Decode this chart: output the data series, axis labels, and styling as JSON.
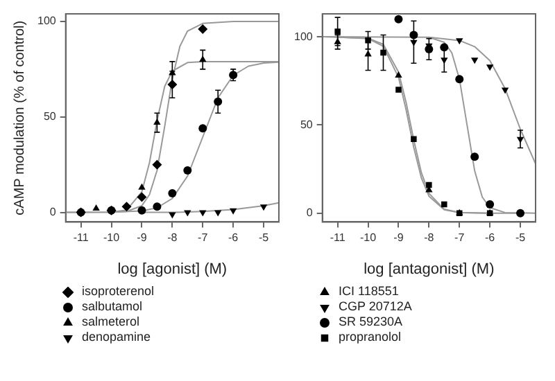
{
  "chart_data": [
    {
      "type": "scatter",
      "xlabel": "log [agonist] (M)",
      "ylabel": "cAMP modulation (% of control)",
      "xlim": [
        -11.5,
        -4.5
      ],
      "xticks": [
        -11,
        -10,
        -9,
        -8,
        -7,
        -6,
        -5
      ],
      "ylim": [
        -5,
        104
      ],
      "yticks": [
        0,
        50,
        100
      ],
      "grid": false,
      "legend": "bottom",
      "series": [
        {
          "type": "line",
          "color": "#999999",
          "marker": "none",
          "x": [
            -11.5,
            -10,
            -9.5,
            -9,
            -8.75,
            -8.5,
            -8.25,
            -8,
            -7.75,
            -7.5,
            -7,
            -6,
            -4.5
          ],
          "values": [
            0,
            0.1,
            0.5,
            3.5,
            9.3,
            22,
            45,
            70,
            87,
            95,
            99,
            100,
            100
          ]
        },
        {
          "type": "line",
          "color": "#999999",
          "marker": "none",
          "x": [
            -11.5,
            -10,
            -9.5,
            -9,
            -8.75,
            -8.5,
            -8.25,
            -8,
            -7.5,
            -7,
            -4.5
          ],
          "values": [
            0,
            0.1,
            1.2,
            10.8,
            26,
            48,
            66,
            74,
            78.5,
            79,
            79
          ]
        },
        {
          "type": "line",
          "color": "#999999",
          "marker": "none",
          "x": [
            -10,
            -9,
            -8.5,
            -8,
            -7.5,
            -7,
            -6.5,
            -6,
            -5.5,
            -5,
            -4.5
          ],
          "values": [
            0.1,
            0.8,
            2.4,
            7.3,
            19,
            39.5,
            60,
            71.8,
            76.6,
            78.2,
            78.7
          ]
        },
        {
          "type": "line",
          "color": "#999999",
          "marker": "none",
          "x": [
            -9,
            -8,
            -7,
            -6,
            -5,
            -4.5
          ],
          "values": [
            0,
            0,
            0.5,
            1.5,
            3.5,
            5
          ]
        },
        {
          "name": "isoproterenol",
          "color": "#000000",
          "marker": "diamond",
          "x": [
            -11,
            -10,
            -9.5,
            -9,
            -8.5,
            -8,
            -7
          ],
          "values": [
            0,
            1,
            3,
            8,
            25,
            67,
            96
          ],
          "errors": [
            null,
            null,
            null,
            null,
            null,
            7,
            null
          ]
        },
        {
          "name": "salbutamol",
          "color": "#000000",
          "marker": "circle",
          "x": [
            -11,
            -10,
            -9,
            -8.5,
            -8,
            -7.5,
            -7,
            -6.5,
            -6
          ],
          "values": [
            0,
            1,
            1,
            3,
            10,
            22,
            44,
            58,
            72
          ],
          "errors": [
            null,
            null,
            null,
            null,
            null,
            null,
            null,
            6,
            3
          ]
        },
        {
          "name": "salmeterol",
          "color": "#000000",
          "marker": "triangle",
          "x": [
            -10.5,
            -9,
            -8.5,
            -8,
            -7
          ],
          "values": [
            2,
            13,
            47,
            73,
            80
          ],
          "errors": [
            null,
            null,
            5,
            6,
            5
          ]
        },
        {
          "name": "denopamine",
          "color": "#000000",
          "marker": "triangle-down",
          "x": [
            -8,
            -7.5,
            -7,
            -6.5,
            -6,
            -5
          ],
          "values": [
            -1,
            0,
            0,
            0,
            1,
            3
          ]
        }
      ]
    },
    {
      "type": "scatter",
      "xlabel": "log [antagonist] (M)",
      "xlim": [
        -11.5,
        -4.5
      ],
      "xticks": [
        -11,
        -10,
        -9,
        -8,
        -7,
        -6,
        -5
      ],
      "ylim": [
        -5,
        113
      ],
      "yticks": [
        0,
        50,
        100
      ],
      "grid": false,
      "legend": "bottom",
      "series": [
        {
          "type": "line",
          "color": "#999999",
          "marker": "none",
          "x": [
            -11.5,
            -10,
            -9.5,
            -9,
            -8.75,
            -8.5,
            -8.25,
            -8,
            -7.5,
            -7,
            -6
          ],
          "values": [
            100,
            99.2,
            95.7,
            80,
            62.7,
            41.5,
            23,
            11.2,
            2.2,
            0.4,
            0
          ]
        },
        {
          "type": "line",
          "color": "#999999",
          "marker": "none",
          "x": [
            -8,
            -7,
            -6.5,
            -6,
            -5.5,
            -5,
            -4.5
          ],
          "values": [
            99.7,
            97.9,
            94.4,
            86.5,
            70.6,
            47.6,
            28
          ]
        },
        {
          "type": "line",
          "color": "#999999",
          "marker": "none",
          "x": [
            -11.5,
            -8,
            -7.5,
            -7.25,
            -7,
            -6.75,
            -6.5,
            -6.25,
            -6,
            -5.5,
            -4.5
          ],
          "values": [
            100,
            99.7,
            96.9,
            90.9,
            76,
            50,
            24,
            9.1,
            3.1,
            0.3,
            0
          ]
        },
        {
          "type": "line",
          "color": "#999999",
          "marker": "none",
          "x": [
            -11,
            -10,
            -9.5,
            -9,
            -8.75,
            -8.5,
            -8.25,
            -8,
            -7.5,
            -7,
            -6,
            -5
          ],
          "values": [
            99.8,
            99,
            94.6,
            77,
            58.5,
            37.3,
            20,
            9.6,
            1.9,
            0.3,
            0,
            0
          ]
        },
        {
          "name": "ICI 118551",
          "color": "#000000",
          "marker": "triangle",
          "x": [
            -11,
            -10,
            -9,
            -8,
            -7.5,
            -7,
            -6
          ],
          "values": [
            97,
            90,
            78,
            13,
            null,
            0,
            0
          ],
          "errors": [
            4,
            9,
            null,
            null,
            null,
            null,
            null
          ]
        },
        {
          "name": "CGP 20712A",
          "color": "#000000",
          "marker": "triangle-down",
          "x": [
            -8.5,
            -8,
            -7.5,
            -7,
            -6.5,
            -6,
            -5.5,
            -5
          ],
          "values": [
            97,
            95,
            87,
            98,
            87,
            83,
            70,
            42
          ],
          "errors": [
            12,
            null,
            7,
            null,
            null,
            null,
            null,
            5
          ]
        },
        {
          "name": "SR 59230A",
          "color": "#000000",
          "marker": "circle",
          "x": [
            -9,
            -8.5,
            -8,
            -7.5,
            -7,
            -6.5,
            -6,
            -5
          ],
          "values": [
            110,
            101,
            93,
            94,
            76,
            32,
            5,
            0
          ],
          "errors": [
            null,
            null,
            6,
            null,
            null,
            null,
            null,
            null
          ]
        },
        {
          "name": "propranolol",
          "color": "#000000",
          "marker": "square",
          "x": [
            -11,
            -10,
            -9.5,
            -9,
            -8.5,
            -8,
            -7.5,
            -7,
            -6
          ],
          "values": [
            103,
            98,
            91,
            70,
            42,
            16,
            5,
            0,
            0
          ],
          "errors": [
            8,
            5,
            10,
            null,
            null,
            null,
            null,
            null,
            null
          ]
        }
      ]
    }
  ]
}
